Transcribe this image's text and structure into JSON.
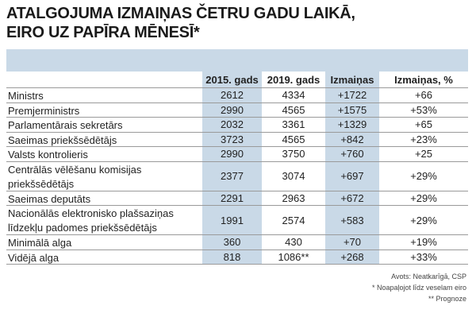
{
  "header": {
    "title_lines": [
      "ATALGOJUMA IZMAIŅAS ČETRU GADU LAIKĀ,",
      "EIRO UZ PAPĪRA MĒNESĪ*"
    ]
  },
  "table": {
    "columns": [
      "2015. gads",
      "2019. gads",
      "Izmaiņas",
      "Izmaiņas, %"
    ],
    "rows": [
      {
        "label": [
          "Ministrs"
        ],
        "cells": [
          "2612",
          "4334",
          "+1722",
          "+66"
        ]
      },
      {
        "label": [
          "Premjerministrs"
        ],
        "cells": [
          "2990",
          "4565",
          "+1575",
          "+53%"
        ]
      },
      {
        "label": [
          "Parlamentārais sekretārs"
        ],
        "cells": [
          "2032",
          "3361",
          "+1329",
          "+65"
        ]
      },
      {
        "label": [
          "Saeimas priekšsēdētājs"
        ],
        "cells": [
          "3723",
          "4565",
          "+842",
          "+23%"
        ]
      },
      {
        "label": [
          "Valsts kontrolieris"
        ],
        "cells": [
          "2990",
          "3750",
          "+760",
          "+25"
        ]
      },
      {
        "label": [
          "Centrālās vēlēšanu komisijas",
          "priekšsēdētājs"
        ],
        "cells": [
          "2377",
          "3074",
          "+697",
          "+29%"
        ]
      },
      {
        "label": [
          "Saeimas deputāts"
        ],
        "cells": [
          "2291",
          "2963",
          "+672",
          "+29%"
        ]
      },
      {
        "label": [
          "Nacionālās elektronisko plašsaziņas",
          "līdzekļu padomes priekšsēdētājs"
        ],
        "cells": [
          "1991",
          "2574",
          "+583",
          "+29%"
        ]
      },
      {
        "label": [
          "Minimālā alga"
        ],
        "cells": [
          "360",
          "430",
          "+70",
          "+19%"
        ]
      },
      {
        "label": [
          "Vidējā alga"
        ],
        "cells": [
          "818",
          "1086**",
          "+268",
          "+33%"
        ]
      }
    ]
  },
  "footnotes": [
    "Avots: Neatkarīgā, CSP",
    "* Noapaļojot līdz veselam eiro",
    "** Prognoze"
  ]
}
